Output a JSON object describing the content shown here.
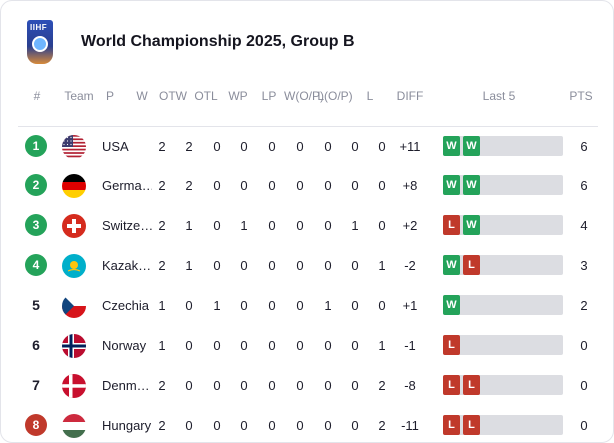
{
  "header": {
    "logo_text": "IIHF",
    "title": "World Championship 2025, Group B"
  },
  "columns": [
    "#",
    "Team",
    "P",
    "W",
    "OTW",
    "OTL",
    "WP",
    "LP",
    "W(O/P)",
    "L(O/P)",
    "L",
    "DIFF",
    "Last 5",
    "PTS"
  ],
  "colors": {
    "advance": "#24a35a",
    "relegation": "#c0392b",
    "win": "#24a35a",
    "loss": "#c0392b"
  },
  "rows": [
    {
      "rank": "1",
      "team": "USA",
      "flag": "usa-flag-icon",
      "stats": [
        "2",
        "2",
        "0",
        "0",
        "0",
        "0",
        "0",
        "0",
        "0"
      ],
      "diff": "+11",
      "last5": [
        "W",
        "W"
      ],
      "pts": "6",
      "zone": "advance"
    },
    {
      "rank": "2",
      "team": "Germa…",
      "flag": "germany-flag-icon",
      "stats": [
        "2",
        "2",
        "0",
        "0",
        "0",
        "0",
        "0",
        "0",
        "0"
      ],
      "diff": "+8",
      "last5": [
        "W",
        "W"
      ],
      "pts": "6",
      "zone": "advance"
    },
    {
      "rank": "3",
      "team": "Switze…",
      "flag": "switzerland-flag-icon",
      "stats": [
        "2",
        "1",
        "0",
        "1",
        "0",
        "0",
        "0",
        "1",
        "0"
      ],
      "diff": "+2",
      "last5": [
        "L",
        "W"
      ],
      "pts": "4",
      "zone": "advance"
    },
    {
      "rank": "4",
      "team": "Kazak…",
      "flag": "kazakhstan-flag-icon",
      "stats": [
        "2",
        "1",
        "0",
        "0",
        "0",
        "0",
        "0",
        "0",
        "1"
      ],
      "diff": "-2",
      "last5": [
        "W",
        "L"
      ],
      "pts": "3",
      "zone": "advance"
    },
    {
      "rank": "5",
      "team": "Czechia",
      "flag": "czechia-flag-icon",
      "stats": [
        "1",
        "0",
        "1",
        "0",
        "0",
        "0",
        "1",
        "0",
        "0"
      ],
      "diff": "+1",
      "last5": [
        "W"
      ],
      "pts": "2",
      "zone": "none"
    },
    {
      "rank": "6",
      "team": "Norway",
      "flag": "norway-flag-icon",
      "stats": [
        "1",
        "0",
        "0",
        "0",
        "0",
        "0",
        "0",
        "0",
        "1"
      ],
      "diff": "-1",
      "last5": [
        "L"
      ],
      "pts": "0",
      "zone": "none"
    },
    {
      "rank": "7",
      "team": "Denm…",
      "flag": "denmark-flag-icon",
      "stats": [
        "2",
        "0",
        "0",
        "0",
        "0",
        "0",
        "0",
        "0",
        "2"
      ],
      "diff": "-8",
      "last5": [
        "L",
        "L"
      ],
      "pts": "0",
      "zone": "none"
    },
    {
      "rank": "8",
      "team": "Hungary",
      "flag": "hungary-flag-icon",
      "stats": [
        "2",
        "0",
        "0",
        "0",
        "0",
        "0",
        "0",
        "0",
        "2"
      ],
      "diff": "-11",
      "last5": [
        "L",
        "L"
      ],
      "pts": "0",
      "zone": "relegation"
    }
  ]
}
